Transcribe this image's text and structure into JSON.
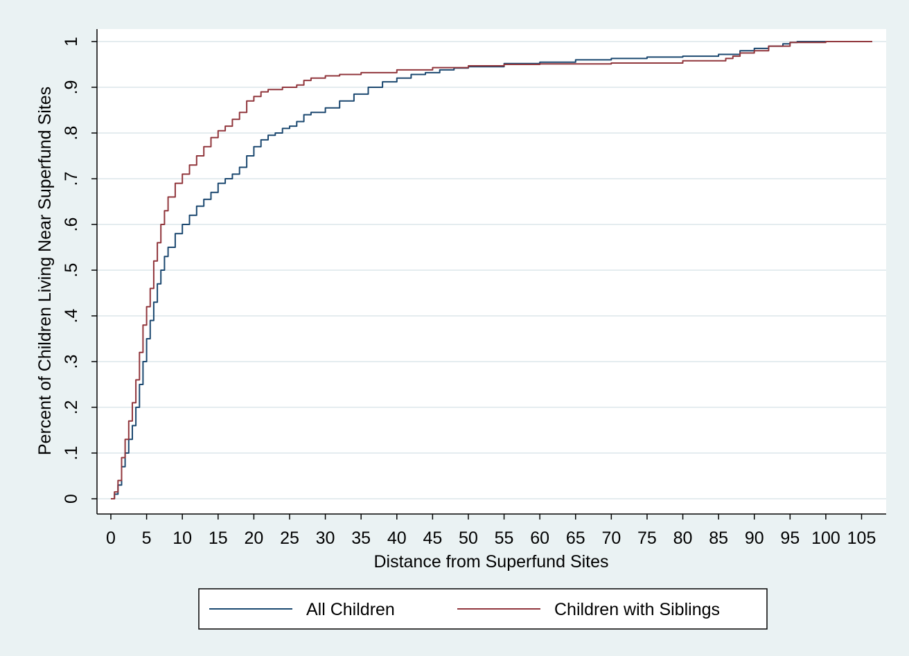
{
  "chart_data": {
    "type": "line",
    "title": "",
    "xlabel": "Distance from Superfund Sites",
    "ylabel": "Percent of Children Living Near Superfund Sites",
    "xlim": [
      -1,
      108
    ],
    "ylim": [
      -0.03,
      1.03
    ],
    "x_ticks": [
      0,
      5,
      10,
      15,
      20,
      25,
      30,
      35,
      40,
      45,
      50,
      55,
      60,
      65,
      70,
      75,
      80,
      85,
      90,
      95,
      100,
      105
    ],
    "x_tick_labels": [
      "0",
      "5",
      "10",
      "15",
      "20",
      "25",
      "30",
      "35",
      "40",
      "45",
      "50",
      "55",
      "60",
      "65",
      "70",
      "75",
      "80",
      "85",
      "90",
      "95",
      "100",
      "105"
    ],
    "y_ticks": [
      0,
      0.1,
      0.2,
      0.3,
      0.4,
      0.5,
      0.6,
      0.7,
      0.8,
      0.9,
      1
    ],
    "y_tick_labels": [
      "0",
      ".1",
      ".2",
      ".3",
      ".4",
      ".5",
      ".6",
      ".7",
      ".8",
      ".9",
      "1"
    ],
    "grid": true,
    "legend_position": "bottom",
    "colors": {
      "background": "#eaf2f3",
      "plot_background": "#ffffff",
      "grid": "#e4ecef",
      "all_children": "#1a476f",
      "children_with_siblings": "#90353b"
    },
    "series": [
      {
        "name": "All Children",
        "color": "#1a476f",
        "x": [
          0,
          0.5,
          1,
          1.5,
          2,
          2.5,
          3,
          3.5,
          4,
          4.5,
          5,
          5.5,
          6,
          6.5,
          7,
          7.5,
          8,
          9,
          10,
          11,
          12,
          13,
          14,
          15,
          16,
          17,
          18,
          19,
          20,
          21,
          22,
          23,
          24,
          25,
          26,
          27,
          28,
          30,
          32,
          34,
          36,
          38,
          40,
          42,
          44,
          46,
          48,
          50,
          55,
          60,
          65,
          70,
          75,
          80,
          85,
          88,
          90,
          92,
          94,
          95,
          96,
          100,
          106.5
        ],
        "y": [
          0,
          0.01,
          0.03,
          0.07,
          0.1,
          0.13,
          0.16,
          0.2,
          0.25,
          0.3,
          0.35,
          0.39,
          0.43,
          0.47,
          0.5,
          0.53,
          0.55,
          0.58,
          0.6,
          0.62,
          0.64,
          0.655,
          0.67,
          0.69,
          0.7,
          0.71,
          0.725,
          0.75,
          0.77,
          0.785,
          0.795,
          0.8,
          0.81,
          0.815,
          0.825,
          0.84,
          0.845,
          0.855,
          0.87,
          0.885,
          0.9,
          0.912,
          0.92,
          0.928,
          0.932,
          0.938,
          0.942,
          0.945,
          0.952,
          0.955,
          0.96,
          0.963,
          0.966,
          0.968,
          0.972,
          0.98,
          0.985,
          0.99,
          0.995,
          0.998,
          1,
          1,
          1
        ]
      },
      {
        "name": "Children with Siblings",
        "color": "#90353b",
        "x": [
          0,
          0.5,
          1,
          1.5,
          2,
          2.5,
          3,
          3.5,
          4,
          4.5,
          5,
          5.5,
          6,
          6.5,
          7,
          7.5,
          8,
          9,
          10,
          11,
          12,
          13,
          14,
          15,
          16,
          17,
          18,
          19,
          20,
          21,
          22,
          24,
          26,
          27,
          28,
          30,
          32,
          35,
          40,
          45,
          50,
          55,
          60,
          70,
          80,
          86,
          87,
          88,
          90,
          92,
          95,
          100,
          106.5
        ],
        "y": [
          0,
          0.015,
          0.04,
          0.09,
          0.13,
          0.17,
          0.21,
          0.26,
          0.32,
          0.38,
          0.42,
          0.46,
          0.52,
          0.56,
          0.6,
          0.63,
          0.66,
          0.69,
          0.71,
          0.73,
          0.75,
          0.77,
          0.79,
          0.805,
          0.815,
          0.83,
          0.845,
          0.87,
          0.88,
          0.89,
          0.895,
          0.9,
          0.905,
          0.915,
          0.92,
          0.925,
          0.928,
          0.932,
          0.938,
          0.943,
          0.947,
          0.95,
          0.951,
          0.953,
          0.958,
          0.963,
          0.968,
          0.975,
          0.98,
          0.99,
          0.998,
          1,
          1
        ]
      }
    ]
  }
}
